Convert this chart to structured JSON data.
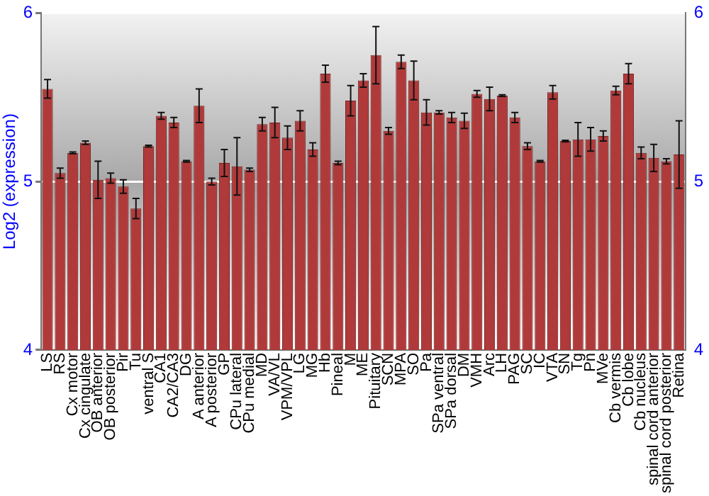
{
  "chart_data": {
    "type": "bar",
    "ylabel": "Log2 (expression)",
    "categories": [
      "LS",
      "RS",
      "Cx motor",
      "Cx cingulate",
      "OB anterior",
      "OB posterior",
      "Pir",
      "Tu",
      "ventral S",
      "CA1",
      "CA2/CA3",
      "DG",
      "A anterior",
      "A posterior",
      "GP",
      "CPu lateral",
      "CPu medial",
      "MD",
      "VA/VL",
      "VPM/VPL",
      "LG",
      "MG",
      "Hb",
      "Pineal",
      "M",
      "ME",
      "Pituitary",
      "SCN",
      "MPA",
      "SO",
      "Pa",
      "SPa ventral",
      "SPa dorsal",
      "DM",
      "VMH",
      "Arc",
      "LH",
      "PAG",
      "SC",
      "IC",
      "VTA",
      "SN",
      "Tg",
      "Pn",
      "MVe",
      "Cb vermis",
      "Cb lobe",
      "Cb nucleus",
      "spinal cord anterior",
      "spinal cord posterior",
      "Retina"
    ],
    "values": [
      5.55,
      5.05,
      5.17,
      5.23,
      5.01,
      5.02,
      4.97,
      4.84,
      5.21,
      5.39,
      5.35,
      5.12,
      5.45,
      5.0,
      5.11,
      5.09,
      5.07,
      5.34,
      5.35,
      5.26,
      5.36,
      5.19,
      5.64,
      5.11,
      5.48,
      5.6,
      5.75,
      5.3,
      5.71,
      5.6,
      5.41,
      5.41,
      5.38,
      5.36,
      5.52,
      5.49,
      5.51,
      5.38,
      5.21,
      5.12,
      5.53,
      5.24,
      5.25,
      5.25,
      5.27,
      5.54,
      5.64,
      5.17,
      5.14,
      5.12,
      5.16
    ],
    "errors": [
      0.055,
      0.03,
      0.005,
      0.01,
      0.11,
      0.03,
      0.04,
      0.06,
      0.005,
      0.02,
      0.03,
      0.005,
      0.1,
      0.02,
      0.08,
      0.17,
      0.01,
      0.04,
      0.09,
      0.07,
      0.06,
      0.04,
      0.05,
      0.01,
      0.09,
      0.04,
      0.17,
      0.02,
      0.04,
      0.115,
      0.075,
      0.01,
      0.03,
      0.045,
      0.02,
      0.07,
      0.005,
      0.03,
      0.02,
      0.005,
      0.04,
      0.005,
      0.1,
      0.07,
      0.03,
      0.025,
      0.06,
      0.035,
      0.08,
      0.015,
      0.2
    ],
    "color": "#b03a3a",
    "ylim": [
      4,
      6
    ],
    "yticks": [
      4,
      5,
      6
    ],
    "y2lim": [
      4,
      6
    ],
    "y2ticks": [
      4,
      5,
      6
    ],
    "grid": "y"
  }
}
